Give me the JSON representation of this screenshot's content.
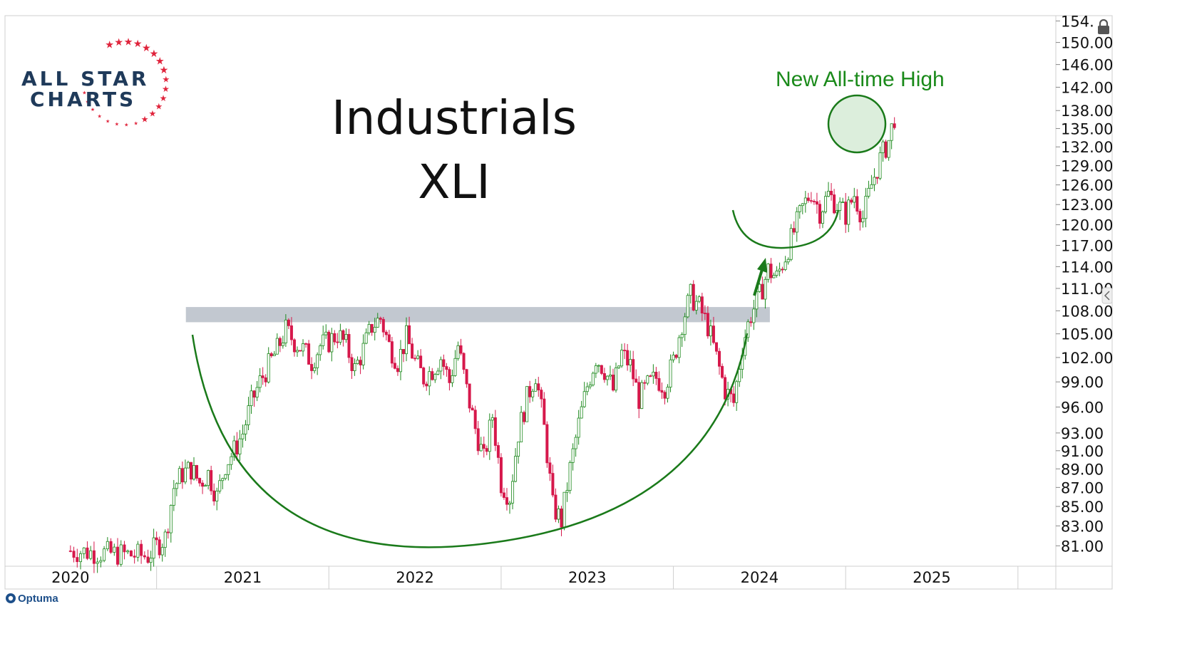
{
  "header": {
    "title_line1": "Industrials",
    "title_line2": "XLI",
    "brand_line1": "ALL STAR",
    "brand_line2": "CHARTS",
    "annotation": "New All-time High",
    "footer_brand": "Optuma"
  },
  "colors": {
    "up": "#1e8a1e",
    "down": "#d6184b",
    "annotation": "#1a8a1a",
    "resistance_band": "#b7bec8",
    "brand_star": "#e0243c",
    "brand_text": "#1f3a5a"
  },
  "chart_data": {
    "type": "candlestick",
    "title": "Industrials XLI",
    "y_scale": "log",
    "ylim": [
      79.0,
      155.0
    ],
    "y_ticks": [
      "154.",
      "150.00",
      "146.00",
      "142.00",
      "138.00",
      "135.00",
      "132.00",
      "129.00",
      "126.00",
      "123.00",
      "120.00",
      "117.00",
      "114.00",
      "111.00",
      "108.00",
      "105.00",
      "102.00",
      "99.00",
      "96.00",
      "93.00",
      "91.00",
      "89.00",
      "87.00",
      "85.00",
      "83.00",
      "81.00"
    ],
    "y_tick_values": [
      154,
      150,
      146,
      142,
      138,
      135,
      132,
      129,
      126,
      123,
      120,
      117,
      114,
      111,
      108,
      105,
      102,
      99,
      96,
      93,
      91,
      89,
      87,
      85,
      83,
      81
    ],
    "x_ticks": [
      "2020",
      "2021",
      "2022",
      "2023",
      "2024",
      "2025"
    ],
    "resistance_band": [
      106.5,
      108.5
    ],
    "weekly_close": [
      [
        2020.0,
        80.5
      ],
      [
        2020.45,
        80.0
      ],
      [
        2020.5,
        81.0
      ],
      [
        2020.55,
        81.8
      ],
      [
        2020.6,
        87.0
      ],
      [
        2020.65,
        88.5
      ],
      [
        2020.7,
        89.0
      ],
      [
        2020.75,
        87.5
      ],
      [
        2020.8,
        88.5
      ],
      [
        2020.85,
        86.0
      ],
      [
        2020.9,
        89.5
      ],
      [
        2020.95,
        91.0
      ],
      [
        2021.0,
        93.0
      ],
      [
        2021.05,
        96.5
      ],
      [
        2021.1,
        99.0
      ],
      [
        2021.15,
        101.0
      ],
      [
        2021.2,
        103.0
      ],
      [
        2021.25,
        105.5
      ],
      [
        2021.3,
        104.0
      ],
      [
        2021.35,
        103.0
      ],
      [
        2021.4,
        101.5
      ],
      [
        2021.45,
        103.5
      ],
      [
        2021.5,
        104.0
      ],
      [
        2021.55,
        105.0
      ],
      [
        2021.6,
        103.5
      ],
      [
        2021.65,
        100.5
      ],
      [
        2021.7,
        103.0
      ],
      [
        2021.75,
        106.0
      ],
      [
        2021.8,
        107.0
      ],
      [
        2021.85,
        103.5
      ],
      [
        2021.9,
        101.5
      ],
      [
        2021.95,
        104.5
      ],
      [
        2022.0,
        101.5
      ],
      [
        2022.05,
        99.5
      ],
      [
        2022.1,
        100.5
      ],
      [
        2022.15,
        102.0
      ],
      [
        2022.2,
        99.0
      ],
      [
        2022.25,
        103.5
      ],
      [
        2022.3,
        98.0
      ],
      [
        2022.35,
        93.5
      ],
      [
        2022.4,
        90.0
      ],
      [
        2022.45,
        95.0
      ],
      [
        2022.5,
        87.5
      ],
      [
        2022.55,
        86.0
      ],
      [
        2022.6,
        93.0
      ],
      [
        2022.65,
        97.0
      ],
      [
        2022.7,
        100.0
      ],
      [
        2022.75,
        93.5
      ],
      [
        2022.8,
        85.0
      ],
      [
        2022.85,
        83.5
      ],
      [
        2022.9,
        89.0
      ],
      [
        2022.95,
        94.0
      ],
      [
        2023.0,
        98.5
      ],
      [
        2023.05,
        102.0
      ],
      [
        2023.1,
        100.5
      ],
      [
        2023.15,
        98.0
      ],
      [
        2023.2,
        102.5
      ],
      [
        2023.25,
        101.0
      ],
      [
        2023.3,
        97.0
      ],
      [
        2023.35,
        98.5
      ],
      [
        2023.4,
        99.5
      ],
      [
        2023.45,
        98.5
      ],
      [
        2023.5,
        101.5
      ],
      [
        2023.55,
        106.5
      ],
      [
        2023.6,
        110.0
      ],
      [
        2023.65,
        108.5
      ],
      [
        2023.7,
        106.0
      ],
      [
        2023.75,
        102.0
      ],
      [
        2023.8,
        98.0
      ],
      [
        2023.85,
        96.5
      ],
      [
        2023.9,
        103.5
      ],
      [
        2023.95,
        107.5
      ],
      [
        2024.0,
        110.0
      ],
      [
        2024.05,
        113.5
      ],
      [
        2024.1,
        112.5
      ],
      [
        2024.15,
        115.5
      ],
      [
        2024.2,
        119.0
      ],
      [
        2024.25,
        122.5
      ],
      [
        2024.3,
        125.0
      ],
      [
        2024.35,
        122.0
      ],
      [
        2024.4,
        124.5
      ],
      [
        2024.45,
        123.0
      ],
      [
        2024.5,
        121.5
      ],
      [
        2024.55,
        124.5
      ],
      [
        2024.6,
        121.0
      ],
      [
        2024.65,
        126.0
      ],
      [
        2024.7,
        130.0
      ],
      [
        2024.75,
        133.0
      ],
      [
        2024.8,
        139.0
      ]
    ],
    "annotations": [
      "New All-time High"
    ]
  }
}
